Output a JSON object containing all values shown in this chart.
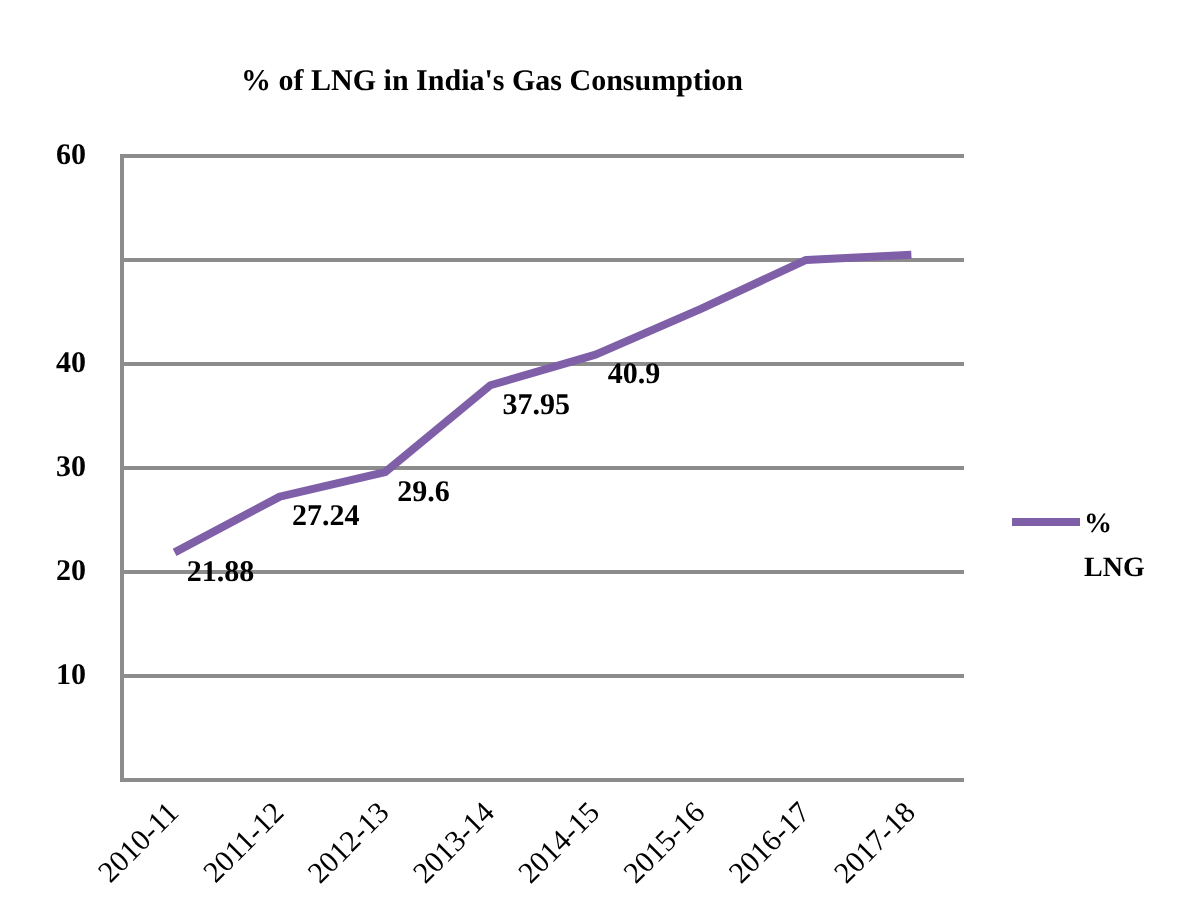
{
  "chart_data": {
    "type": "line",
    "title": "% of LNG in India's Gas Consumption",
    "categories": [
      "2010-11",
      "2011-12",
      "2012-13",
      "2013-14",
      "2014-15",
      "2015-16",
      "2016-17",
      "2017-18"
    ],
    "series": [
      {
        "name": "% LNG",
        "color": "#7f5fa8",
        "values": [
          21.88,
          27.24,
          29.6,
          37.95,
          40.9,
          45.3,
          50.0,
          50.5
        ],
        "value_labels": [
          "21.88",
          "27.24",
          "29.6",
          "37.95",
          "40.9",
          null,
          null,
          null
        ]
      }
    ],
    "ylim": [
      0,
      60
    ],
    "yticks": [
      {
        "value": 0,
        "label": null
      },
      10,
      20,
      30,
      40,
      {
        "value": 50,
        "label": null
      },
      60
    ],
    "grid": "y",
    "legend": "right",
    "marker": "none",
    "line_style": "solid"
  }
}
